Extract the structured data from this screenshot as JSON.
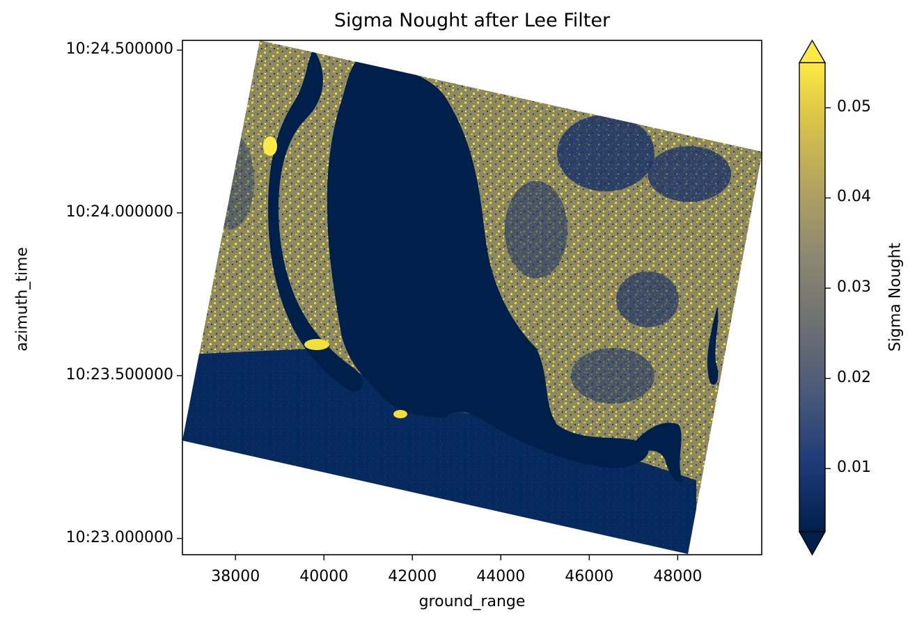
{
  "chart_data": {
    "type": "heatmap",
    "title": "Sigma Nought after Lee Filter",
    "xlabel": "ground_range",
    "ylabel": "azimuth_time",
    "xlim": [
      36800,
      49900
    ],
    "ylim_seconds": [
      22.95,
      24.53
    ],
    "x_ticks": [
      38000,
      40000,
      42000,
      44000,
      46000,
      48000
    ],
    "x_tick_labels": [
      "38000",
      "40000",
      "42000",
      "44000",
      "46000",
      "48000"
    ],
    "y_ticks": [
      23.0,
      23.5,
      24.0,
      24.5
    ],
    "y_tick_labels": [
      "10:23.000000",
      "10:23.500000",
      "10:24.000000",
      "10:24.500000"
    ],
    "colorbar": {
      "label": "Sigma Nought",
      "colormap": "cividis",
      "vmin": 0.003,
      "vmax": 0.055,
      "extend": "both",
      "ticks": [
        0.01,
        0.02,
        0.03,
        0.04,
        0.05
      ],
      "tick_labels": [
        "0.01",
        "0.02",
        "0.03",
        "0.04",
        "0.05"
      ]
    },
    "colors": {
      "water": "#00204c",
      "land_low": "#3d4f8a",
      "land_high": "#ffe945"
    }
  }
}
